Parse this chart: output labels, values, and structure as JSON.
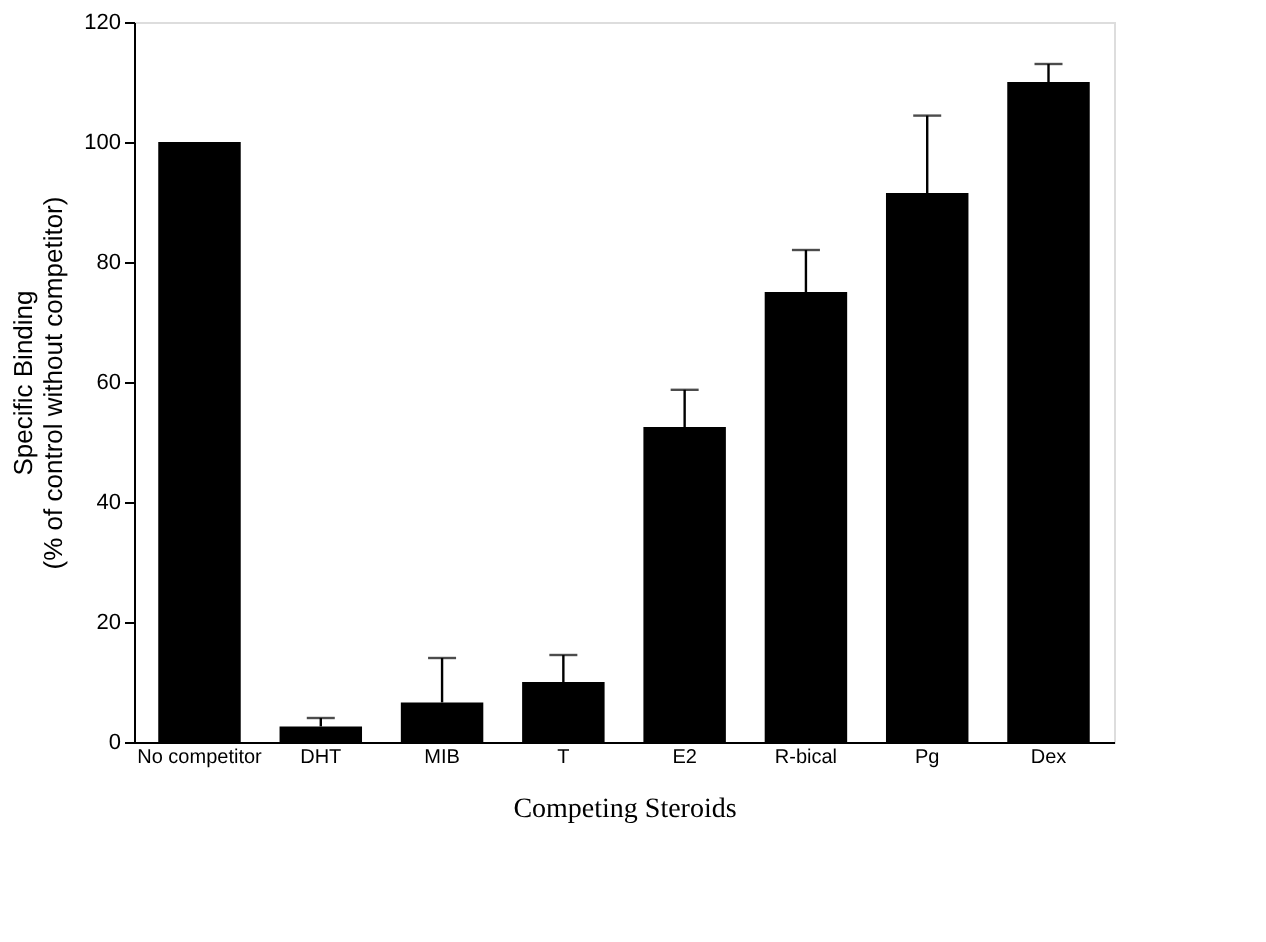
{
  "chart_data": {
    "type": "bar",
    "xlabel": "Competing Steroids",
    "ylabel": "Specific Binding\n(% of control without competitor)",
    "categories": [
      "No competitor",
      "DHT",
      "MIB",
      "T",
      "E2",
      "R-bical",
      "Pg",
      "Dex"
    ],
    "values": [
      100,
      2.6,
      6.6,
      10,
      52.5,
      75,
      91.5,
      110
    ],
    "errors": [
      null,
      [
        2.6,
        4
      ],
      [
        6.6,
        14
      ],
      [
        10,
        14.5
      ],
      [
        52.5,
        58.7
      ],
      [
        75,
        82
      ],
      [
        91.5,
        104.4
      ],
      [
        110,
        113
      ]
    ],
    "color": "#000000",
    "ylim": [
      0,
      120
    ],
    "yticks": [
      0,
      20,
      40,
      60,
      80,
      100,
      120
    ],
    "grid": false
  }
}
